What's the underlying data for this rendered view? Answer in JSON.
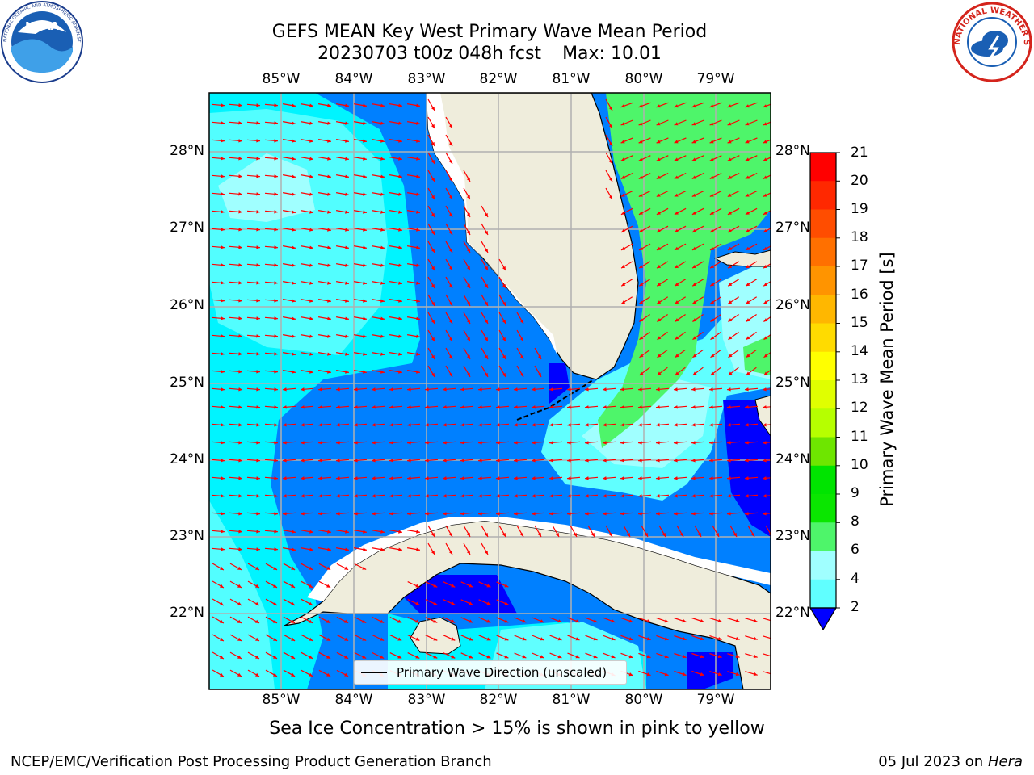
{
  "title": {
    "line1": "GEFS MEAN Key West Primary Wave Mean Period",
    "line2_run": "20230703 t00z 048h fcst",
    "line2_max": "Max: 10.01"
  },
  "map": {
    "lon_labels": [
      "85°W",
      "84°W",
      "83°W",
      "82°W",
      "81°W",
      "80°W",
      "79°W"
    ],
    "lat_labels": [
      "28°N",
      "27°N",
      "26°N",
      "25°N",
      "24°N",
      "23°N",
      "22°N"
    ],
    "land_color": "#efeddc",
    "coast_color": "#000000",
    "grid_color": "#b0b0b0",
    "arrow_color": "#ff0000"
  },
  "colorbar": {
    "title": "Primary Wave Mean Period [s]",
    "ticks": [
      "21",
      "20",
      "19",
      "18",
      "17",
      "16",
      "15",
      "14",
      "13",
      "12",
      "11",
      "10",
      "9",
      "8",
      "6",
      "4",
      "2"
    ],
    "colors_top_to_bottom": [
      "#ff0000",
      "#ff2800",
      "#ff4d00",
      "#ff7000",
      "#ff9400",
      "#ffb700",
      "#ffdb00",
      "#ffff00",
      "#e0ff00",
      "#b6ff00",
      "#6ee600",
      "#00e400",
      "#0ae600",
      "#4ef56a",
      "#a0ffff",
      "#60ffff",
      "#00f4ff",
      "#00c8ff",
      "#0080ff",
      "#0000ff"
    ]
  },
  "legend": {
    "label": "Primary Wave Direction (unscaled)"
  },
  "note": "Sea Ice Concentration > 15% is shown in pink to yellow",
  "footer": {
    "left": "NCEP/EMC/Verification Post Processing Product Generation Branch",
    "right_date": "05 Jul 2023 on ",
    "right_host": "Hera"
  },
  "logos": {
    "noaa_text": "NOAA",
    "noaa_ring_text": "NATIONAL OCEANIC AND ATMOSPHERIC ADMINISTRATION · U.S. DEPARTMENT OF COMMERCE",
    "nws_ring_text": "NATIONAL WEATHER SERVICE"
  }
}
